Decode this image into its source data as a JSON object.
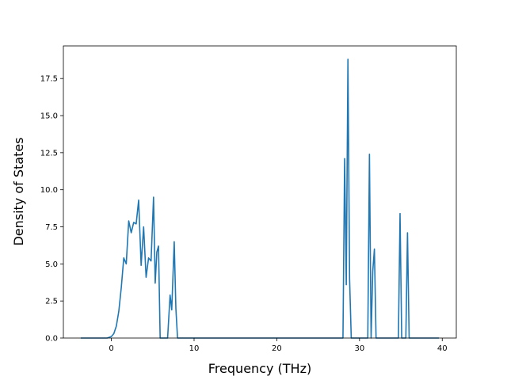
{
  "chart_data": {
    "type": "line",
    "title": "",
    "xlabel": "Frequency (THz)",
    "ylabel": "Density of States",
    "xlim": [
      -5.8,
      41.7
    ],
    "ylim": [
      0,
      19.7
    ],
    "xticks": [
      0,
      10,
      20,
      30,
      40
    ],
    "xtick_labels": [
      "0",
      "10",
      "20",
      "30",
      "40"
    ],
    "yticks": [
      0,
      2.5,
      5,
      7.5,
      10,
      12.5,
      15,
      17.5
    ],
    "ytick_labels": [
      "0.0",
      "2.5",
      "5.0",
      "7.5",
      "10.0",
      "12.5",
      "15.0",
      "17.5"
    ],
    "grid": false,
    "line_color": "#1f77b4",
    "series": [
      {
        "x": [
          -3.7,
          -0.5,
          0.0,
          0.3,
          0.6,
          0.9,
          1.2,
          1.5,
          1.8,
          2.1,
          2.4,
          2.7,
          3.0,
          3.3,
          3.6,
          3.9,
          4.2,
          4.5,
          4.8,
          5.1,
          5.3,
          5.5,
          5.7,
          5.9,
          6.1,
          6.3,
          6.5,
          6.8,
          7.1,
          7.3,
          7.6,
          7.8,
          8.0,
          8.2,
          8.4,
          8.6,
          28.0,
          28.2,
          28.4,
          28.6,
          28.8,
          29.0,
          29.2,
          30.8,
          31.0,
          31.2,
          31.4,
          31.6,
          31.8,
          32.0,
          32.2,
          34.7,
          34.9,
          35.1,
          35.3,
          35.6,
          35.8,
          36.0,
          36.2,
          39.6
        ],
        "y": [
          0,
          0,
          0.1,
          0.3,
          0.8,
          1.8,
          3.4,
          5.4,
          5.0,
          7.9,
          7.1,
          7.8,
          7.7,
          9.3,
          4.9,
          7.5,
          4.1,
          5.4,
          5.2,
          9.5,
          3.7,
          5.8,
          6.2,
          0,
          0,
          0,
          0,
          0,
          2.9,
          1.9,
          6.5,
          2.0,
          0,
          0,
          0,
          0,
          0,
          12.1,
          3.6,
          18.8,
          4.0,
          0,
          0,
          0,
          0,
          12.4,
          0,
          4.5,
          6.0,
          0,
          0,
          0,
          8.4,
          0,
          0,
          0,
          7.1,
          0,
          0,
          0
        ]
      }
    ]
  }
}
